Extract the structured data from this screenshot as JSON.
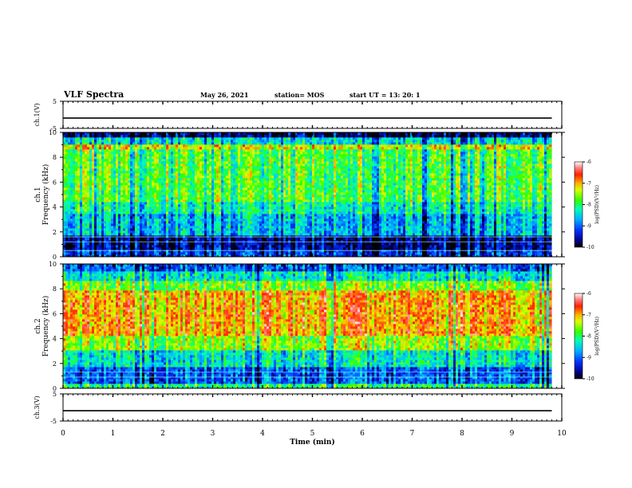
{
  "header": {
    "title": "VLF Spectra",
    "date": "May 26, 2021",
    "station": "station= MOS",
    "start": "start  UT  =   13: 20: 1"
  },
  "chart_data": [
    {
      "type": "line",
      "panel": "ch1-waveform",
      "ylabel": "ch.1(V)",
      "ylim": [
        -5,
        5
      ],
      "yticks": [
        "5",
        "-5"
      ],
      "series": [
        {
          "values_description_free": true,
          "x": [
            0,
            9.8
          ],
          "y": [
            -1.2,
            -1.2
          ]
        }
      ]
    },
    {
      "type": "heatmap",
      "panel": "ch1-spectrogram",
      "ylabel": "ch.1\nFrequency (kHz)",
      "ylim": [
        0,
        10
      ],
      "yticks": [
        "0",
        "2",
        "4",
        "6",
        "8",
        "10"
      ],
      "xlim": [
        0,
        10
      ],
      "data_end_min": 9.8,
      "colorbar": {
        "label": "log(PSD)(V²/Hz)",
        "range": [
          -10,
          -6
        ],
        "ticks": [
          "-6",
          "-7",
          "-8",
          "-9",
          "-10"
        ]
      },
      "bands": [
        {
          "f_low": 0.0,
          "f_high": 0.5,
          "level": -9.2
        },
        {
          "f_low": 0.5,
          "f_high": 1.8,
          "level": -9.6
        },
        {
          "f_low": 1.8,
          "f_high": 3.5,
          "level": -8.6
        },
        {
          "f_low": 3.5,
          "f_high": 4.5,
          "level": -8.2
        },
        {
          "f_low": 4.5,
          "f_high": 8.6,
          "level": -7.8
        },
        {
          "f_low": 8.6,
          "f_high": 9.1,
          "level": -7.2
        },
        {
          "f_low": 9.1,
          "f_high": 9.6,
          "level": -8.4
        },
        {
          "f_low": 9.6,
          "f_high": 10.0,
          "level": -9.7
        }
      ],
      "lines_khz": [
        0.5,
        1.2,
        1.6
      ]
    },
    {
      "type": "heatmap",
      "panel": "ch2-spectrogram",
      "ylabel": "ch.2\nFrequency (kHz)",
      "ylim": [
        0,
        10
      ],
      "yticks": [
        "0",
        "2",
        "4",
        "6",
        "8",
        "10"
      ],
      "xlim": [
        0,
        10
      ],
      "data_end_min": 9.8,
      "colorbar": {
        "label": "log(PSD)(V²/Hz)",
        "range": [
          -10,
          -6
        ],
        "ticks": [
          "-6",
          "-7",
          "-8",
          "-9",
          "-10"
        ]
      },
      "bands": [
        {
          "f_low": 0.0,
          "f_high": 0.4,
          "level": -8.0
        },
        {
          "f_low": 0.4,
          "f_high": 1.8,
          "level": -9.0
        },
        {
          "f_low": 1.8,
          "f_high": 3.0,
          "level": -8.3
        },
        {
          "f_low": 3.0,
          "f_high": 4.2,
          "level": -7.5
        },
        {
          "f_low": 4.2,
          "f_high": 7.8,
          "level": -6.9
        },
        {
          "f_low": 7.8,
          "f_high": 8.6,
          "level": -7.6
        },
        {
          "f_low": 8.6,
          "f_high": 9.4,
          "level": -8.3
        },
        {
          "f_low": 9.4,
          "f_high": 10.0,
          "level": -9.0
        }
      ],
      "lines_khz": [
        0.9,
        1.3
      ]
    },
    {
      "type": "line",
      "panel": "ch3-waveform",
      "ylabel": "ch.3(V)",
      "ylim": [
        -5,
        5
      ],
      "yticks": [
        "5",
        "-5"
      ],
      "xlabel": "Time (min)",
      "xticks": [
        "0",
        "1",
        "2",
        "3",
        "4",
        "5",
        "6",
        "7",
        "8",
        "9",
        "10"
      ],
      "series": [
        {
          "x": [
            0,
            9.8
          ],
          "y": [
            -1.2,
            -1.2
          ]
        }
      ]
    }
  ]
}
